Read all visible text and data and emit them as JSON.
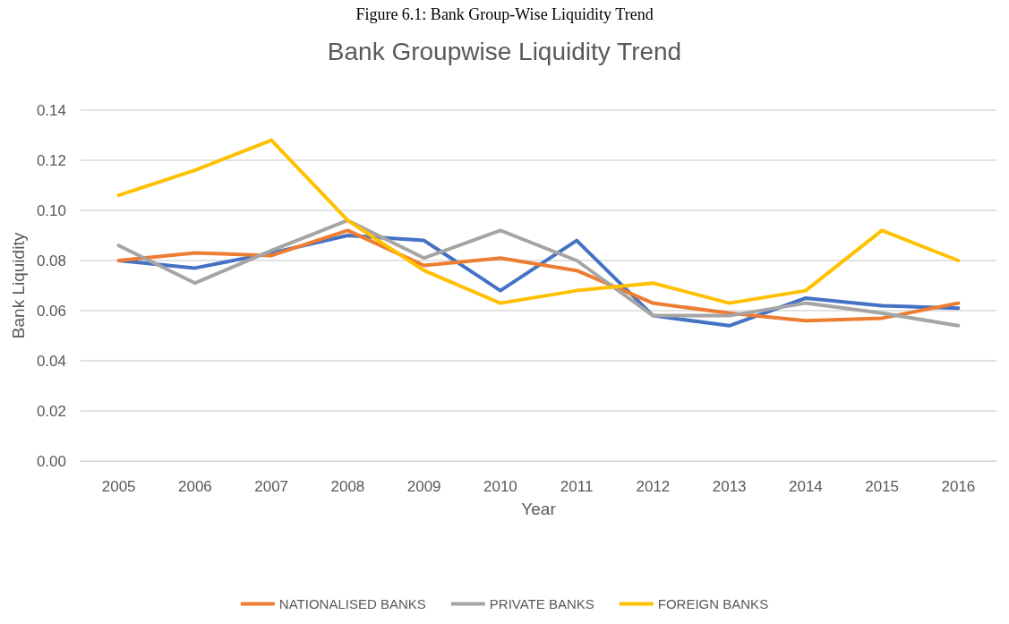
{
  "chart_data": {
    "type": "line",
    "title": "Bank Groupwise Liquidity Trend",
    "xlabel": "Year",
    "ylabel": "Bank Liquidity",
    "annotations": [
      "Figure 6.1: Bank Group-Wise Liquidity Trend"
    ],
    "categories": [
      "2005",
      "2006",
      "2007",
      "2008",
      "2009",
      "2010",
      "2011",
      "2012",
      "2013",
      "2014",
      "2015",
      "2016"
    ],
    "series": [
      {
        "color": "#4472c4",
        "values": [
          0.08,
          0.077,
          0.083,
          0.09,
          0.088,
          0.068,
          0.088,
          0.058,
          0.054,
          0.065,
          0.062,
          0.061
        ]
      },
      {
        "name": "NATIONALISED BANKS",
        "color": "#ed7d31",
        "values": [
          0.08,
          0.083,
          0.082,
          0.092,
          0.078,
          0.081,
          0.076,
          0.063,
          0.059,
          0.056,
          0.057,
          0.063
        ]
      },
      {
        "name": "PRIVATE BANKS",
        "color": "#a5a5a5",
        "values": [
          0.086,
          0.071,
          0.084,
          0.096,
          0.081,
          0.092,
          0.08,
          0.058,
          0.058,
          0.063,
          0.059,
          0.054
        ]
      },
      {
        "name": "FOREIGN BANKS",
        "color": "#ffc000",
        "values": [
          0.106,
          0.116,
          0.128,
          0.096,
          0.076,
          0.063,
          0.068,
          0.071,
          0.063,
          0.068,
          0.092,
          0.08
        ]
      }
    ],
    "ylim": [
      0,
      0.14
    ],
    "yticks": [
      {
        "value": 0,
        "label": "0.00"
      },
      {
        "value": 0.02,
        "label": "0.02"
      },
      {
        "value": 0.04,
        "label": "0.04"
      },
      {
        "value": 0.06,
        "label": "0.06"
      },
      {
        "value": 0.08,
        "label": "0.08"
      },
      {
        "value": 0.1,
        "label": "0.10"
      },
      {
        "value": 0.12,
        "label": "0.12"
      },
      {
        "value": 0.14,
        "label": "0.14"
      }
    ],
    "grid": "y",
    "legend": "bottom",
    "marker": "none",
    "line_style": "solid"
  }
}
